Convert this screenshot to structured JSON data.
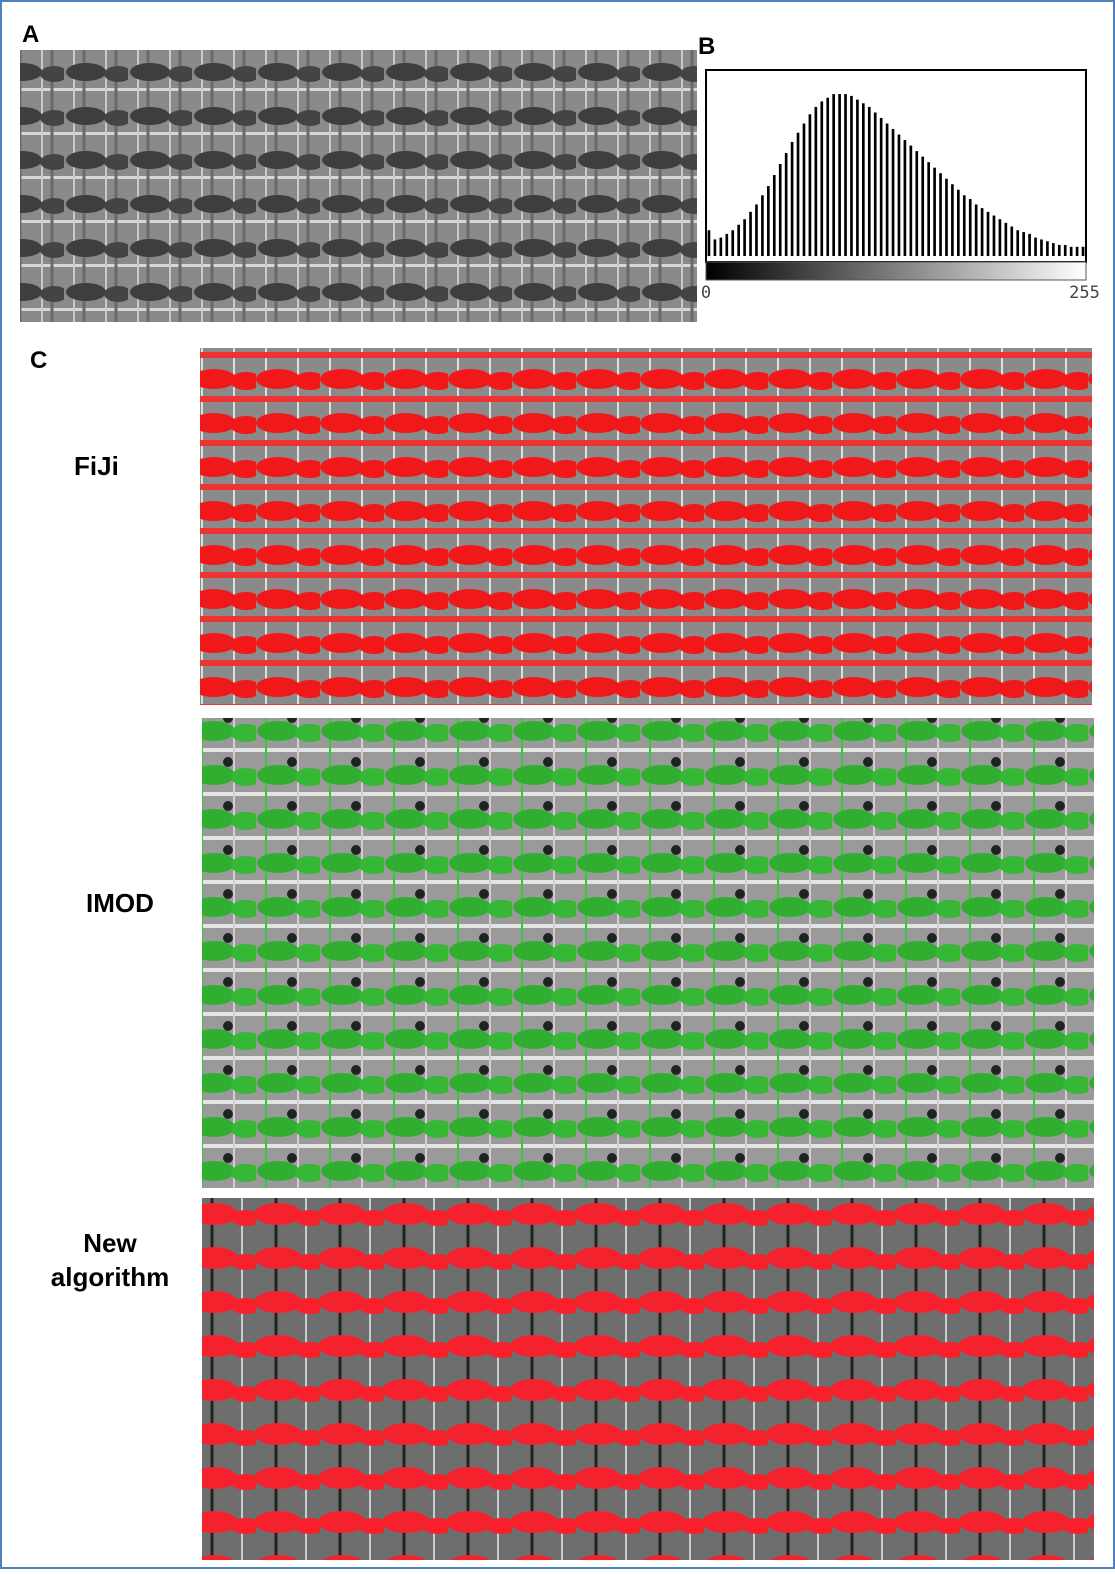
{
  "panels": {
    "a": {
      "label": "A"
    },
    "b": {
      "label": "B"
    },
    "c": {
      "label": "C",
      "rows": [
        {
          "label": "FiJi"
        },
        {
          "label": "IMOD"
        },
        {
          "label": "New algorithm"
        }
      ]
    }
  },
  "chart_data": {
    "type": "histogram",
    "color": "#000000",
    "bins": [
      0,
      4,
      8,
      12,
      16,
      20,
      24,
      28,
      32,
      36,
      40,
      44,
      48,
      52,
      56,
      60,
      64,
      68,
      72,
      76,
      80,
      84,
      88,
      92,
      96,
      100,
      104,
      108,
      112,
      116,
      120,
      124,
      128,
      132,
      136,
      140,
      144,
      148,
      152,
      156,
      160,
      164,
      168,
      172,
      176,
      180,
      184,
      188,
      192,
      196,
      200,
      204,
      208,
      212,
      216,
      220,
      224,
      228,
      232,
      236,
      240,
      244,
      248,
      252,
      256
    ],
    "values": [
      14,
      9,
      10,
      12,
      14,
      17,
      20,
      24,
      28,
      33,
      38,
      44,
      50,
      56,
      62,
      67,
      72,
      77,
      81,
      84,
      86,
      88,
      88,
      88,
      87,
      85,
      83,
      81,
      78,
      75,
      72,
      69,
      66,
      63,
      60,
      57,
      54,
      51,
      48,
      45,
      42,
      39,
      36,
      33,
      31,
      28,
      26,
      24,
      22,
      20,
      18,
      16,
      14,
      13,
      12,
      10,
      9,
      8,
      7,
      6,
      6,
      5,
      5,
      5
    ],
    "xlim": [
      0,
      256
    ],
    "ylim": [
      0,
      100
    ],
    "xticks": [
      0,
      255
    ]
  }
}
